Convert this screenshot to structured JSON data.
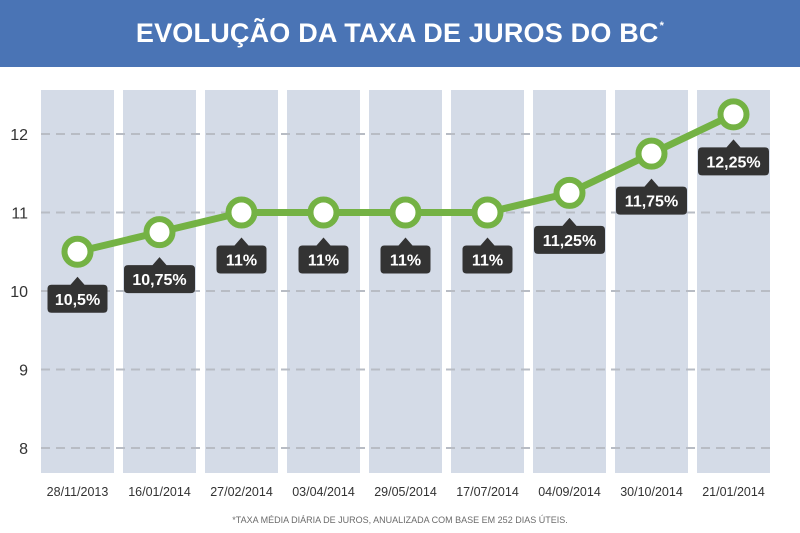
{
  "header": {
    "title": "EVOLUÇÃO DA TAXA DE JUROS DO BC",
    "title_mark": "*"
  },
  "footnote": "*TAXA MÉDIA DIÁRIA DE JUROS, ANUALIZADA COM BASE EM 252 DIAS ÚTEIS.",
  "colors": {
    "header_bg": "#4a74b5",
    "column_bg": "#d4dbe7",
    "line": "#74b244",
    "label_bg": "#333333",
    "label_text": "#ffffff",
    "grid": "#b8bcc4"
  },
  "chart_data": {
    "type": "line",
    "title": "EVOLUÇÃO DA TAXA DE JUROS DO BC",
    "categories": [
      "28/11/2013",
      "16/01/2014",
      "27/02/2014",
      "03/04/2014",
      "29/05/2014",
      "17/07/2014",
      "04/09/2014",
      "30/10/2014",
      "21/01/2014"
    ],
    "series": [
      {
        "values": [
          10.5,
          10.75,
          11,
          11,
          11,
          11,
          11.25,
          11.75,
          12.25
        ],
        "labels": [
          "10,5%",
          "10,75%",
          "11%",
          "11%",
          "11%",
          "11%",
          "11,25%",
          "11,75%",
          "12,25%"
        ]
      }
    ],
    "yticks": [
      8,
      9,
      10,
      11,
      12
    ],
    "ylim": [
      7.8,
      12.6
    ],
    "grid": true,
    "xlabel": "",
    "ylabel": ""
  }
}
